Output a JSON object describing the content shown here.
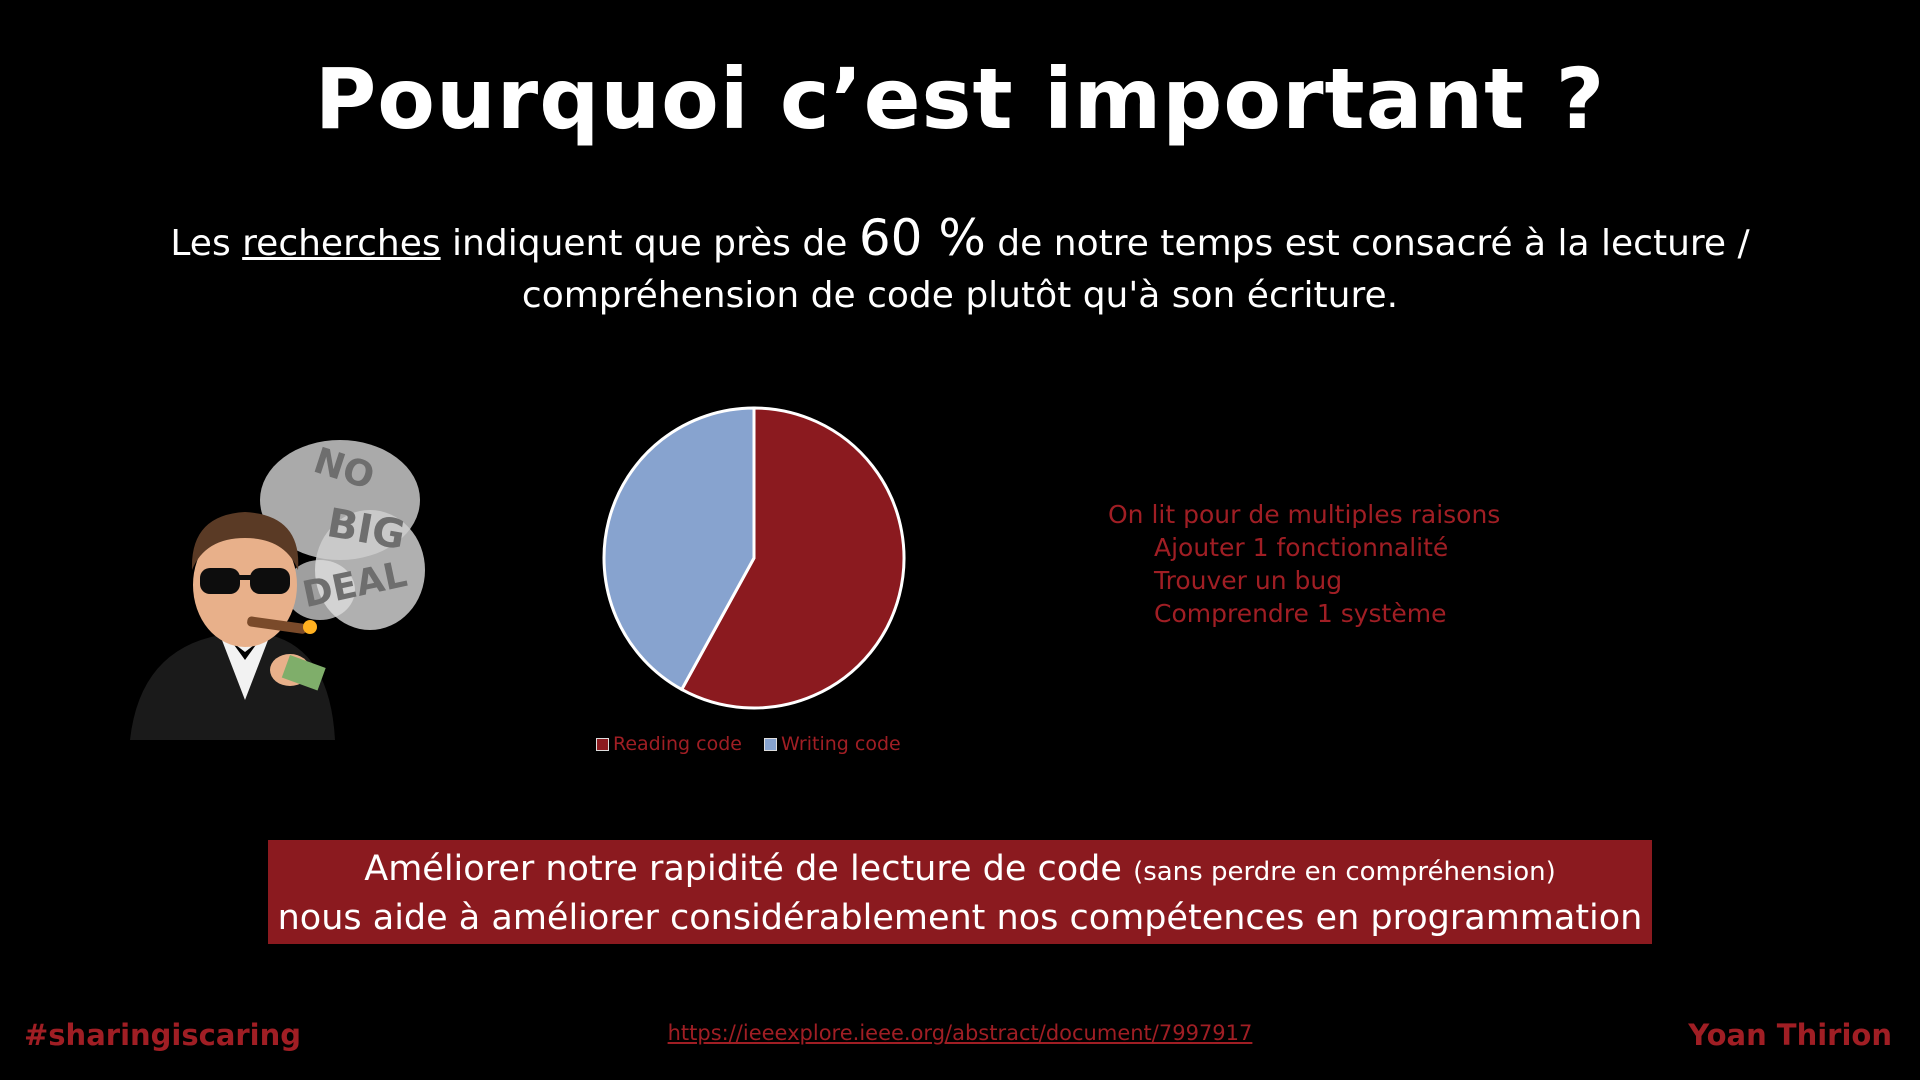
{
  "title": "Pourquoi c’est important ?",
  "intro": {
    "prefix": "Les ",
    "link_word": "recherches",
    "middle": " indiquent que près de ",
    "percent": "60 %",
    "suffix_line1": " de notre temps est consacré à la lecture /",
    "line2": "compréhension de code plutôt qu'à son écriture."
  },
  "chart_data": {
    "type": "pie",
    "categories": [
      "Reading code",
      "Writing code"
    ],
    "values": [
      58,
      42
    ],
    "colors": [
      "#8b1a1f",
      "#87a3cf"
    ],
    "legend_position": "bottom"
  },
  "reasons": {
    "heading": "On lit pour de multiples raisons",
    "items": [
      "Ajouter 1 fonctionnalité",
      "Trouver un bug",
      "Comprendre 1 système"
    ]
  },
  "avatar": {
    "smoke_text": [
      "NO",
      "BIG",
      "DEAL"
    ]
  },
  "callout": {
    "line1_main": "Améliorer notre rapidité de lecture de code",
    "line1_small": "(sans perdre en compréhension)",
    "line2": "nous aide à améliorer considérablement nos compétences en programmation"
  },
  "footer": {
    "hashtag": "#sharingiscaring",
    "link": "https://ieeexplore.ieee.org/abstract/document/7997917",
    "author": "Yoan Thirion"
  },
  "colors": {
    "background": "#000000",
    "accent_red": "#a01e24",
    "callout_bg": "#8b1a1f"
  }
}
